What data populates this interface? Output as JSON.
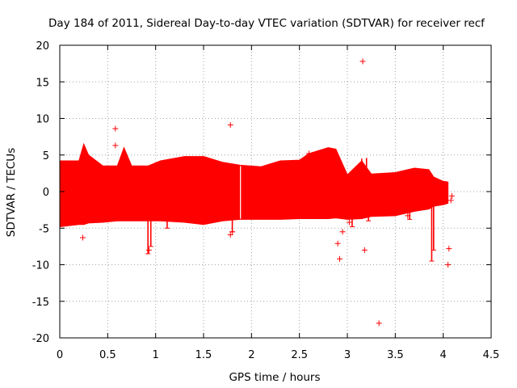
{
  "chart_data": {
    "type": "scatter",
    "title": "Day 184 of 2011, Sidereal Day-to-day VTEC variation (SDTVAR) for receiver recf",
    "xlabel": "GPS time / hours",
    "ylabel": "SDTVAR / TECUs",
    "xlim": [
      0,
      4.5
    ],
    "ylim": [
      -20,
      20
    ],
    "x_ticks": [
      0,
      0.5,
      1,
      1.5,
      2,
      2.5,
      3,
      3.5,
      4,
      4.5
    ],
    "x_tick_labels": [
      "0",
      "0.5",
      "1",
      "1.5",
      "2",
      "2.5",
      "3",
      "3.5",
      "4",
      "4.5"
    ],
    "y_ticks": [
      20,
      15,
      10,
      5,
      0,
      -5,
      -10,
      -15,
      -20
    ],
    "y_tick_labels": [
      "20",
      "15",
      "10",
      "5",
      "0",
      "-5",
      "-10",
      "-15",
      "-20"
    ],
    "grid": true,
    "marker": "+",
    "series_color": "#ff0000",
    "dense_band": {
      "name": "SDTVAR (dense)",
      "envelope": [
        {
          "x": 0.0,
          "ymin": -4.8,
          "ymax": 4.2
        },
        {
          "x": 0.2,
          "ymin": -4.5,
          "ymax": 4.2
        },
        {
          "x": 0.25,
          "ymin": -4.5,
          "ymax": 6.5
        },
        {
          "x": 0.3,
          "ymin": -4.3,
          "ymax": 5.0
        },
        {
          "x": 0.45,
          "ymin": -4.2,
          "ymax": 3.5
        },
        {
          "x": 0.6,
          "ymin": -4.0,
          "ymax": 3.5
        },
        {
          "x": 0.67,
          "ymin": -4.0,
          "ymax": 6.0
        },
        {
          "x": 0.75,
          "ymin": -4.0,
          "ymax": 3.5
        },
        {
          "x": 0.92,
          "ymin": -4.0,
          "ymax": 3.5
        },
        {
          "x": 1.05,
          "ymin": -4.0,
          "ymax": 4.2
        },
        {
          "x": 1.3,
          "ymin": -4.2,
          "ymax": 4.8
        },
        {
          "x": 1.5,
          "ymin": -4.5,
          "ymax": 4.8
        },
        {
          "x": 1.7,
          "ymin": -4.0,
          "ymax": 4.0
        },
        {
          "x": 1.88,
          "ymin": -3.8,
          "ymax": 3.6
        },
        {
          "x": 2.1,
          "ymin": -3.8,
          "ymax": 3.4
        },
        {
          "x": 2.3,
          "ymin": -3.8,
          "ymax": 4.2
        },
        {
          "x": 2.5,
          "ymin": -3.7,
          "ymax": 4.3
        },
        {
          "x": 2.6,
          "ymin": -3.7,
          "ymax": 5.2
        },
        {
          "x": 2.8,
          "ymin": -3.7,
          "ymax": 6.0
        },
        {
          "x": 2.88,
          "ymin": -3.6,
          "ymax": 5.8
        },
        {
          "x": 3.0,
          "ymin": -3.8,
          "ymax": 2.3
        },
        {
          "x": 3.15,
          "ymin": -3.7,
          "ymax": 4.2
        },
        {
          "x": 3.25,
          "ymin": -3.4,
          "ymax": 2.4
        },
        {
          "x": 3.5,
          "ymin": -3.3,
          "ymax": 2.6
        },
        {
          "x": 3.7,
          "ymin": -2.7,
          "ymax": 3.2
        },
        {
          "x": 3.85,
          "ymin": -2.4,
          "ymax": 3.0
        },
        {
          "x": 3.9,
          "ymin": -2.0,
          "ymax": 2.0
        },
        {
          "x": 4.0,
          "ymin": -1.8,
          "ymax": 1.4
        },
        {
          "x": 4.05,
          "ymin": -1.6,
          "ymax": 1.3
        }
      ]
    },
    "spikes": [
      {
        "x": 0.92,
        "ymin": -8.5,
        "ymax": -3.5
      },
      {
        "x": 0.95,
        "ymin": -7.5,
        "ymax": -3.5
      },
      {
        "x": 1.12,
        "ymin": -5.0,
        "ymax": -3.8
      },
      {
        "x": 1.8,
        "ymin": -5.5,
        "ymax": -3.5
      },
      {
        "x": 3.05,
        "ymin": -4.8,
        "ymax": -3.5
      },
      {
        "x": 3.22,
        "ymin": -4.0,
        "ymax": -3.0
      },
      {
        "x": 3.65,
        "ymin": -3.8,
        "ymax": -2.5
      },
      {
        "x": 3.88,
        "ymin": -9.5,
        "ymax": -2.0
      },
      {
        "x": 3.9,
        "ymin": -8.0,
        "ymax": -2.0
      },
      {
        "x": 3.2,
        "ymin": 2.0,
        "ymax": 4.6
      },
      {
        "x": 3.15,
        "ymin": 2.0,
        "ymax": 4.5
      }
    ],
    "outliers": [
      {
        "x": 0.24,
        "y": -6.3
      },
      {
        "x": 0.58,
        "y": 8.6
      },
      {
        "x": 0.58,
        "y": 6.3
      },
      {
        "x": 0.93,
        "y": -8.0
      },
      {
        "x": 1.78,
        "y": 9.1
      },
      {
        "x": 1.78,
        "y": -5.9
      },
      {
        "x": 1.8,
        "y": -5.5
      },
      {
        "x": 2.6,
        "y": 5.2
      },
      {
        "x": 2.9,
        "y": -7.1
      },
      {
        "x": 2.92,
        "y": -9.2
      },
      {
        "x": 2.95,
        "y": -5.5
      },
      {
        "x": 3.02,
        "y": -4.2
      },
      {
        "x": 3.16,
        "y": 17.8
      },
      {
        "x": 3.18,
        "y": -8.0
      },
      {
        "x": 3.33,
        "y": -18.0
      },
      {
        "x": 3.63,
        "y": -3.3
      },
      {
        "x": 4.05,
        "y": -10.0
      },
      {
        "x": 4.06,
        "y": -7.8
      },
      {
        "x": 4.08,
        "y": -1.2
      },
      {
        "x": 4.09,
        "y": -0.6
      }
    ]
  }
}
